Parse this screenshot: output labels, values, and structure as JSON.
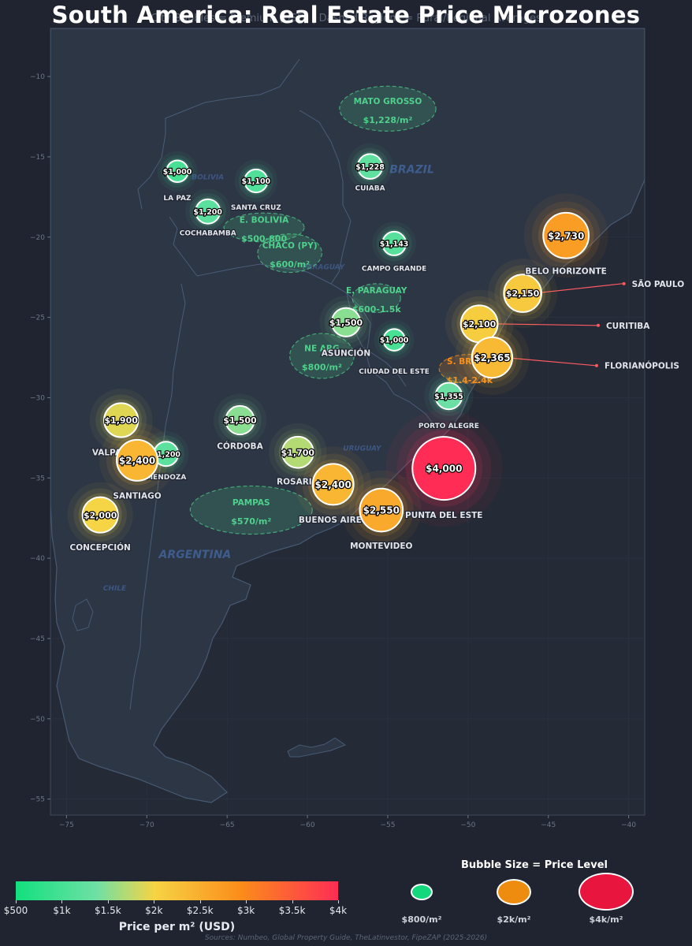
{
  "title": "South America: Real Estate Price Microzones",
  "subtitle": "City Bubbles = Premium (USD) | Dashed Regions = Rural/Regional Averages",
  "map_extent": {
    "lon": [
      -76,
      -39
    ],
    "lat": [
      -56,
      -7
    ]
  },
  "axes": {
    "x_ticks": [
      -75,
      -70,
      -65,
      -60,
      -55,
      -50,
      -45,
      -40
    ],
    "y_ticks": [
      -10,
      -15,
      -20,
      -25,
      -30,
      -35,
      -40,
      -45,
      -50,
      -55
    ]
  },
  "country_labels": [
    {
      "name": "BRAZIL",
      "lon": -53.5,
      "lat": -16
    },
    {
      "name": "BOLIVIA",
      "lon": -66.2,
      "lat": -16.4
    },
    {
      "name": "PARAGUAY",
      "lon": -59,
      "lat": -22
    },
    {
      "name": "URUGUAY",
      "lon": -56.6,
      "lat": -33.3
    },
    {
      "name": "ARGENTINA",
      "lon": -67,
      "lat": -40
    },
    {
      "name": "CHILE",
      "lon": -72,
      "lat": -42
    }
  ],
  "regions": [
    {
      "name": "MATO GROSSO",
      "value": "$1,228/m²",
      "lon": -55,
      "lat": -12,
      "rx": 3,
      "ry": 1.4,
      "color": "#4fd08c"
    },
    {
      "name": "E. BOLIVIA",
      "value": "$500-800",
      "lon": -62.7,
      "lat": -19.4,
      "rx": 2.5,
      "ry": 0.9,
      "color": "#4fd08c"
    },
    {
      "name": "CHACO (PY)",
      "value": "$600/m²",
      "lon": -61.1,
      "lat": -21,
      "rx": 2,
      "ry": 1.2,
      "color": "#4fd08c"
    },
    {
      "name": "E. PARAGUAY",
      "value": "$600-1.5k",
      "lon": -55.7,
      "lat": -23.8,
      "rx": 1.5,
      "ry": 0.9,
      "color": "#4fd08c"
    },
    {
      "name": "NE ARG",
      "value": "$800/m²",
      "lon": -59.1,
      "lat": -27.4,
      "rx": 2,
      "ry": 1.4,
      "color": "#4fd08c"
    },
    {
      "name": "S. BRAZIL",
      "value": "$1.4-2.4k",
      "lon": -49.9,
      "lat": -28.2,
      "rx": 1.9,
      "ry": 0.9,
      "color": "#fb8c1a"
    },
    {
      "name": "PAMPAS",
      "value": "$570/m²",
      "lon": -63.5,
      "lat": -37,
      "rx": 3.8,
      "ry": 1.5,
      "color": "#4fd08c"
    }
  ],
  "cities": [
    {
      "name": "LA PAZ",
      "value": 1000,
      "label": "$1,000",
      "lon": -68.1,
      "lat": -15.9,
      "dlon": 0,
      "dlat": -1.6
    },
    {
      "name": "SANTA CRUZ",
      "value": 1100,
      "label": "$1,100",
      "lon": -63.2,
      "lat": -16.5,
      "dlon": 0,
      "dlat": -1.6
    },
    {
      "name": "COCHABAMBA",
      "value": 1200,
      "label": "$1,200",
      "lon": -66.2,
      "lat": -18.4,
      "dlon": 0,
      "dlat": -1.3
    },
    {
      "name": "CUIABA",
      "value": 1228,
      "label": "$1,228",
      "lon": -56.1,
      "lat": -15.6,
      "dlon": 0,
      "dlat": -1.3
    },
    {
      "name": "CAMPO GRANDE",
      "value": 1143,
      "label": "$1,143",
      "lon": -54.6,
      "lat": -20.4,
      "dlon": 0,
      "dlat": -1.5
    },
    {
      "name": "BELO HORIZONTE",
      "value": 2730,
      "label": "$2,730",
      "lon": -43.9,
      "lat": -19.9,
      "dlon": 0,
      "dlat": -2.2
    },
    {
      "name": "SÃO PAULO",
      "value": 2150,
      "label": "$2,150",
      "lon": -46.6,
      "lat": -23.5,
      "dlon": 6.5,
      "dlat": 0.6,
      "leader": true
    },
    {
      "name": "CURITIBA",
      "value": 2100,
      "label": "$2,100",
      "lon": -49.3,
      "lat": -25.4,
      "dlon": 7.6,
      "dlat": -0.1,
      "leader": true
    },
    {
      "name": "FLORIANÓPOLIS",
      "value": 2365,
      "label": "$2,365",
      "lon": -48.5,
      "lat": -27.5,
      "dlon": 6.7,
      "dlat": -0.5,
      "leader": true
    },
    {
      "name": "ASUNCIÓN",
      "value": 1500,
      "label": "$1,500",
      "lon": -57.6,
      "lat": -25.3,
      "dlon": 0,
      "dlat": -1.9
    },
    {
      "name": "CIUDAD DEL ESTE",
      "value": 1000,
      "label": "$1,000",
      "lon": -54.6,
      "lat": -26.4,
      "dlon": 0,
      "dlat": -1.9
    },
    {
      "name": "PORTO ALEGRE",
      "value": 1355,
      "label": "$1,355",
      "lon": -51.2,
      "lat": -29.9,
      "dlon": 0,
      "dlat": -1.8
    },
    {
      "name": "CÓRDOBA",
      "value": 1500,
      "label": "$1,500",
      "lon": -64.2,
      "lat": -31.4,
      "dlon": 0,
      "dlat": -1.6
    },
    {
      "name": "VALPARAÍSO",
      "value": 1900,
      "label": "$1,900",
      "lon": -71.6,
      "lat": -31.4,
      "dlon": 0,
      "dlat": -2
    },
    {
      "name": "MENDOZA",
      "value": 1200,
      "label": "$1,200",
      "lon": -68.8,
      "lat": -33.5,
      "dlon": 0,
      "dlat": -1.4
    },
    {
      "name": "SANTIAGO",
      "value": 2400,
      "label": "$2,400",
      "lon": -70.6,
      "lat": -33.9,
      "dlon": 0,
      "dlat": -2.2
    },
    {
      "name": "ROSARIO",
      "value": 1700,
      "label": "$1,700",
      "lon": -60.6,
      "lat": -33.4,
      "dlon": 0,
      "dlat": -1.8
    },
    {
      "name": "BUENOS AIRES",
      "value": 2400,
      "label": "$2,400",
      "lon": -58.4,
      "lat": -35.4,
      "dlon": 0,
      "dlat": -2.2
    },
    {
      "name": "CONCEPCIÓN",
      "value": 2000,
      "label": "$2,000",
      "lon": -72.9,
      "lat": -37.3,
      "dlon": 0,
      "dlat": -2
    },
    {
      "name": "PUNTA DEL ESTE",
      "value": 4000,
      "label": "$4,000",
      "lon": -51.5,
      "lat": -34.4,
      "dlon": 0,
      "dlat": -2.9
    },
    {
      "name": "MONTEVIDEO",
      "value": 2550,
      "label": "$2,550",
      "lon": -55.4,
      "lat": -37,
      "dlon": 0,
      "dlat": -2.2
    }
  ],
  "colorbar": {
    "label": "Price per m² (USD)",
    "min": 500,
    "max": 4000,
    "ticks": [
      {
        "value": 500,
        "label": "$500"
      },
      {
        "value": 1000,
        "label": "$1k"
      },
      {
        "value": 1500,
        "label": "$1.5k"
      },
      {
        "value": 2000,
        "label": "$2k"
      },
      {
        "value": 2500,
        "label": "$2.5k"
      },
      {
        "value": 3000,
        "label": "$3k"
      },
      {
        "value": 3500,
        "label": "$3.5k"
      },
      {
        "value": 4000,
        "label": "$4k"
      }
    ],
    "colors": [
      "#12e07e",
      "#6ee0a5",
      "#f6d444",
      "#fb8c1a",
      "#ff2d55"
    ]
  },
  "size_legend": {
    "title": "Bubble Size = Price Level",
    "items": [
      {
        "label": "$800/m²",
        "value": 800,
        "color": "#13d87c"
      },
      {
        "label": "$2k/m²",
        "value": 2000,
        "color": "#ee8c10"
      },
      {
        "label": "$4k/m²",
        "value": 4000,
        "color": "#e8163f"
      }
    ]
  },
  "sources": "Sources: Numbeo, Global Property Guide, TheLatinvestor, FipeZAP (2025-2026)"
}
